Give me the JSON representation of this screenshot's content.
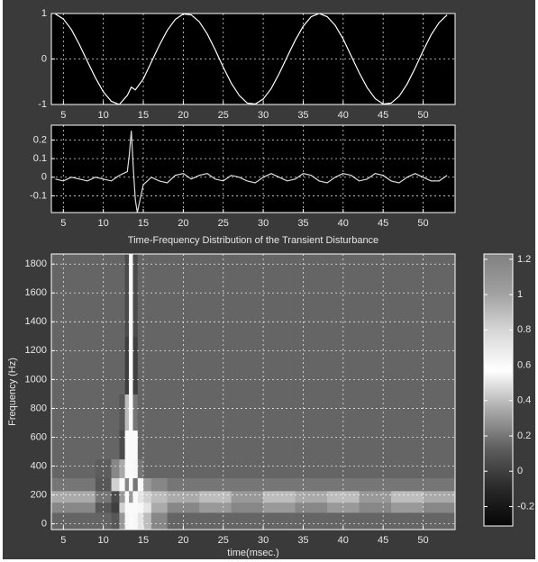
{
  "chart_data": [
    {
      "type": "line",
      "color": "#ffffff",
      "grid": true,
      "xlim": [
        3.5,
        54
      ],
      "xticks": [
        5,
        10,
        15,
        20,
        25,
        30,
        35,
        40,
        45,
        50
      ],
      "ylim": [
        -1,
        1
      ],
      "yticks": [
        -1,
        0,
        1
      ],
      "x": [
        4,
        5,
        6,
        7,
        8,
        9,
        10,
        11,
        12,
        13,
        13.5,
        14,
        15,
        16,
        17,
        18,
        19,
        20,
        21,
        22,
        23,
        24,
        25,
        26,
        27,
        28,
        29,
        30,
        31,
        32,
        33,
        34,
        35,
        36,
        37,
        38,
        39,
        40,
        41,
        42,
        43,
        44,
        45,
        46,
        47,
        48,
        49,
        50,
        51,
        52,
        53
      ],
      "values": [
        0.99,
        0.88,
        0.65,
        0.32,
        -0.05,
        -0.41,
        -0.72,
        -0.93,
        -1.0,
        -0.8,
        -0.62,
        -0.68,
        -0.44,
        -0.07,
        0.3,
        0.63,
        0.87,
        0.99,
        0.97,
        0.82,
        0.55,
        0.2,
        -0.18,
        -0.53,
        -0.8,
        -0.97,
        -0.99,
        -0.88,
        -0.65,
        -0.32,
        0.05,
        0.41,
        0.72,
        0.93,
        1.0,
        0.93,
        0.74,
        0.44,
        0.07,
        -0.3,
        -0.63,
        -0.87,
        -0.99,
        -0.97,
        -0.82,
        -0.55,
        -0.2,
        0.18,
        0.53,
        0.8,
        0.97
      ]
    },
    {
      "type": "line",
      "color": "#dddddd",
      "grid": true,
      "xlim": [
        3.5,
        54
      ],
      "xticks": [
        5,
        10,
        15,
        20,
        25,
        30,
        35,
        40,
        45,
        50
      ],
      "ylim": [
        -0.19,
        0.28
      ],
      "yticks": [
        -0.1,
        0,
        0.1,
        0.2
      ],
      "x": [
        4,
        5,
        6,
        7,
        8,
        9,
        10,
        11,
        12,
        13,
        13.25,
        13.5,
        13.75,
        14,
        14.25,
        15,
        16,
        17,
        18,
        19,
        20,
        21,
        22,
        23,
        24,
        25,
        26,
        27,
        28,
        29,
        30,
        31,
        32,
        33,
        34,
        35,
        36,
        37,
        38,
        39,
        40,
        41,
        42,
        43,
        44,
        45,
        46,
        47,
        48,
        49,
        50,
        51,
        52,
        53
      ],
      "values": [
        -0.01,
        -0.02,
        0.0,
        -0.01,
        -0.02,
        0.0,
        -0.01,
        -0.02,
        0.01,
        0.03,
        0.12,
        0.25,
        0.05,
        -0.12,
        -0.19,
        -0.04,
        0.0,
        -0.02,
        -0.03,
        0.01,
        0.02,
        -0.01,
        0.01,
        0.02,
        -0.01,
        -0.02,
        0.01,
        0.0,
        -0.02,
        -0.03,
        0.0,
        0.02,
        0.0,
        -0.02,
        -0.01,
        0.02,
        0.01,
        -0.02,
        -0.03,
        0.0,
        0.02,
        0.01,
        -0.02,
        -0.01,
        0.02,
        0.01,
        -0.02,
        -0.03,
        0.0,
        0.02,
        0.0,
        -0.02,
        -0.02,
        0.01
      ]
    },
    {
      "type": "heatmap",
      "title": "Time-Frequency Distribution of the Transient Disturbance",
      "xlabel": "time(msec.)",
      "ylabel": "Frequency (Hz)",
      "grid": true,
      "xlim": [
        3.5,
        54
      ],
      "xticks": [
        5,
        10,
        15,
        20,
        25,
        30,
        35,
        40,
        45,
        50
      ],
      "ylim": [
        -40,
        1870
      ],
      "yticks": [
        0,
        200,
        400,
        600,
        800,
        1000,
        1200,
        1400,
        1600,
        1800
      ],
      "zlim": [
        -0.31,
        1.23
      ],
      "zticks": [
        -0.2,
        0,
        0.2,
        0.4,
        0.6,
        0.8,
        1,
        1.2
      ],
      "colormap": [
        "#050505",
        "#2a2a2a",
        "#5e5e5e",
        "#aaaaaa",
        "#ffffff",
        "#d8d8d8",
        "#a0a0a0",
        "#808080"
      ],
      "x_edges": [
        3.5,
        9,
        11,
        12,
        12.7,
        13.2,
        13.7,
        14.3,
        15,
        16,
        18,
        22,
        26,
        30,
        34,
        38,
        42,
        46,
        50,
        54
      ],
      "y_edges": [
        -40,
        80,
        150,
        230,
        320,
        450,
        650,
        900,
        1300,
        1870
      ],
      "z": [
        [
          0.15,
          0.15,
          0.1,
          0.3,
          0.55,
          0.6,
          0.55,
          0.5,
          0.4,
          0.25,
          0.15,
          0.15,
          0.15,
          0.15,
          0.15,
          0.15,
          0.15,
          0.15,
          0.15
        ],
        [
          0.25,
          0.1,
          0.0,
          0.45,
          0.6,
          0.6,
          0.6,
          0.55,
          0.5,
          0.35,
          0.25,
          0.3,
          0.25,
          0.3,
          0.25,
          0.3,
          0.25,
          0.3,
          0.25
        ],
        [
          0.35,
          0.2,
          0.05,
          0.3,
          0.6,
          0.3,
          0.6,
          0.5,
          0.45,
          0.4,
          0.35,
          0.4,
          0.3,
          0.4,
          0.35,
          0.4,
          0.3,
          0.4,
          0.35
        ],
        [
          0.2,
          0.1,
          0.45,
          0.6,
          0.25,
          0.6,
          0.2,
          0.6,
          0.3,
          0.25,
          0.2,
          0.2,
          0.2,
          0.2,
          0.2,
          0.2,
          0.2,
          0.2,
          0.2
        ],
        [
          0.15,
          0.12,
          0.25,
          0.35,
          0.6,
          0.6,
          0.55,
          0.2,
          0.15,
          0.15,
          0.15,
          0.15,
          0.15,
          0.15,
          0.15,
          0.15,
          0.15,
          0.15,
          0.15
        ],
        [
          0.15,
          0.15,
          0.15,
          0.05,
          0.6,
          0.6,
          0.6,
          0.15,
          0.15,
          0.15,
          0.15,
          0.15,
          0.15,
          0.15,
          0.15,
          0.15,
          0.15,
          0.15,
          0.15
        ],
        [
          0.15,
          0.15,
          0.15,
          0.1,
          0.4,
          0.6,
          0.2,
          0.15,
          0.15,
          0.15,
          0.15,
          0.15,
          0.15,
          0.15,
          0.15,
          0.15,
          0.15,
          0.15,
          0.15
        ],
        [
          0.15,
          0.15,
          0.15,
          0.15,
          0.0,
          0.6,
          0.0,
          0.15,
          0.15,
          0.15,
          0.15,
          0.15,
          0.15,
          0.15,
          0.15,
          0.15,
          0.15,
          0.15,
          0.15
        ],
        [
          0.15,
          0.15,
          0.15,
          0.15,
          0.05,
          0.55,
          0.05,
          0.15,
          0.15,
          0.15,
          0.15,
          0.15,
          0.15,
          0.15,
          0.15,
          0.15,
          0.15,
          0.15,
          0.15
        ]
      ]
    }
  ]
}
